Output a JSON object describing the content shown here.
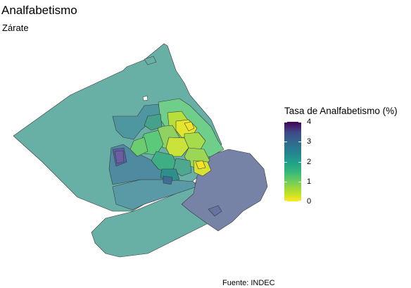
{
  "header": {
    "title": "Analfabetismo",
    "subtitle": "Zárate"
  },
  "legend": {
    "title": "Tasa de Analfabetismo (%)",
    "ticks": [
      {
        "value": "4"
      },
      {
        "value": "3"
      },
      {
        "value": "2"
      },
      {
        "value": "1"
      },
      {
        "value": "0"
      }
    ],
    "scale_min": 0,
    "scale_max": 4,
    "palette": "viridis"
  },
  "map": {
    "region_name": "Zárate",
    "fill_colors": {
      "low": "#fde725",
      "mid": "#21918c",
      "high": "#440154",
      "west_region": "#68b0a6",
      "east_region": "#7682a6",
      "border": "#3a3a3a"
    }
  },
  "caption": "Fuente: INDEC"
}
